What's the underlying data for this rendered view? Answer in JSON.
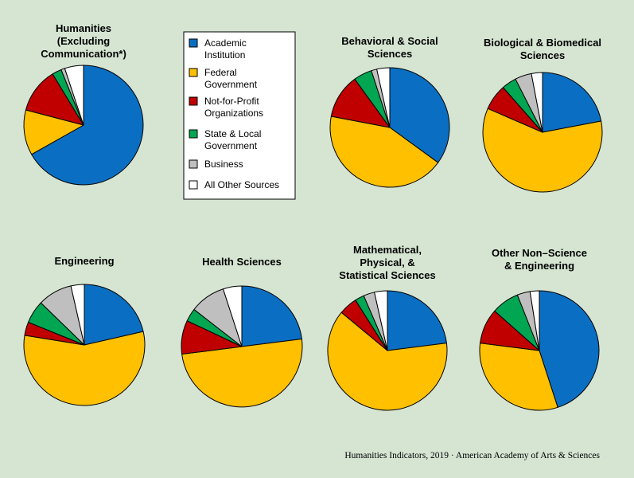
{
  "colors": {
    "background": "#d5e5d2",
    "Academic Institution": "#0a6fc2",
    "Federal Government": "#ffc000",
    "Not-for-Profit Organizations": "#c00000",
    "State & Local Government": "#00a651",
    "Business": "#bfbfbf",
    "All Other Sources": "#ffffff"
  },
  "legend": {
    "items": [
      {
        "key": "Academic Institution",
        "lines": [
          "Academic",
          "Institution"
        ]
      },
      {
        "key": "Federal Government",
        "lines": [
          "Federal",
          "Government"
        ]
      },
      {
        "key": "Not-for-Profit Organizations",
        "lines": [
          "Not-for-Profit",
          "Organizations"
        ]
      },
      {
        "key": "State & Local Government",
        "lines": [
          "State & Local",
          "Government"
        ]
      },
      {
        "key": "Business",
        "lines": [
          "Business"
        ]
      },
      {
        "key": "All Other Sources",
        "lines": [
          "All Other Sources"
        ]
      }
    ]
  },
  "credit": "Humanities Indicators, 2019 · American Academy of Arts & Sciences",
  "chart_data": {
    "type": "pie",
    "slice_order": [
      "Academic Institution",
      "Federal Government",
      "Not-for-Profit Organizations",
      "State & Local Government",
      "Business",
      "All Other Sources"
    ],
    "legend_position": "top-center",
    "charts": [
      {
        "title_lines": [
          "Humanities",
          "(Excluding",
          "Communication*)"
        ],
        "values": [
          65.5,
          12.0,
          12.0,
          2.5,
          1.0,
          5.0
        ]
      },
      {
        "title_lines": [
          "Behavioral & Social",
          "Sciences"
        ],
        "values": [
          35.0,
          43.0,
          12.0,
          5.0,
          1.5,
          3.5
        ]
      },
      {
        "title_lines": [
          "Biological & Biomedical",
          "Sciences"
        ],
        "values": [
          22.0,
          59.5,
          7.0,
          4.0,
          4.5,
          3.0
        ]
      },
      {
        "title_lines": [
          "Engineering"
        ],
        "values": [
          21.0,
          55.0,
          3.5,
          6.0,
          9.0,
          3.5
        ]
      },
      {
        "title_lines": [
          "Health Sciences"
        ],
        "values": [
          23.0,
          50.0,
          9.0,
          3.5,
          9.5,
          5.0
        ]
      },
      {
        "title_lines": [
          "Mathematical,",
          "Physical, &",
          "Statistical Sciences"
        ],
        "values": [
          23.0,
          63.0,
          5.0,
          2.5,
          3.0,
          3.5
        ]
      },
      {
        "title_lines": [
          "Other Non–Science",
          "& Engineering"
        ],
        "values": [
          45.0,
          32.0,
          9.5,
          7.5,
          3.5,
          2.5
        ]
      }
    ]
  }
}
